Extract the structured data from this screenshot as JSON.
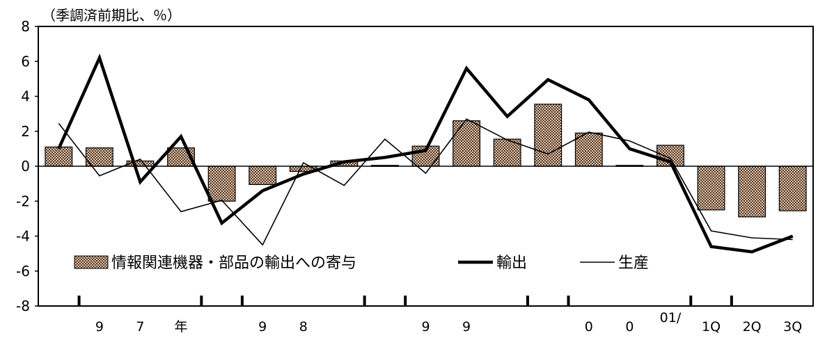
{
  "chart_data": {
    "type": "bar",
    "unit_label": "（季調済前期比、％）",
    "ylim": [
      -8,
      8
    ],
    "yticks": [
      -8,
      -6,
      -4,
      -2,
      0,
      2,
      4,
      6,
      8
    ],
    "grid": false,
    "legend_position": "lower-left",
    "x_tick_labels": [
      "",
      "9",
      "7",
      "年",
      "",
      "9",
      "8",
      "",
      "",
      "9",
      "9",
      "",
      "",
      "0",
      "0",
      "01/",
      "1Q",
      "2Q",
      "3Q"
    ],
    "series": [
      {
        "name": "情報関連機器・部品の輸出への寄与",
        "kind": "bar",
        "color": "#a0826a",
        "values": [
          1.1,
          1.05,
          0.3,
          1.05,
          -2.0,
          -1.05,
          -0.3,
          0.3,
          0.05,
          1.15,
          2.6,
          1.55,
          3.55,
          1.9,
          0.05,
          1.2,
          -2.5,
          -2.9,
          -2.55
        ]
      },
      {
        "name": "輸出",
        "kind": "line",
        "color": "#000000",
        "values": [
          1.0,
          6.2,
          -0.9,
          1.7,
          -3.25,
          -1.4,
          -0.45,
          0.25,
          0.5,
          0.9,
          5.6,
          2.85,
          4.95,
          3.8,
          1.0,
          0.25,
          -4.6,
          -4.9,
          -4.0
        ]
      },
      {
        "name": "生産",
        "kind": "line",
        "color": "#000000",
        "values": [
          2.45,
          -0.55,
          0.4,
          -2.6,
          -1.95,
          -4.5,
          0.2,
          -1.1,
          1.55,
          -0.4,
          2.7,
          1.5,
          0.7,
          1.95,
          1.45,
          0.45,
          -3.7,
          -4.1,
          -4.2
        ]
      }
    ],
    "year_marks_after_index": [
      0,
      3,
      4,
      7,
      8,
      11,
      12,
      15,
      16
    ]
  }
}
